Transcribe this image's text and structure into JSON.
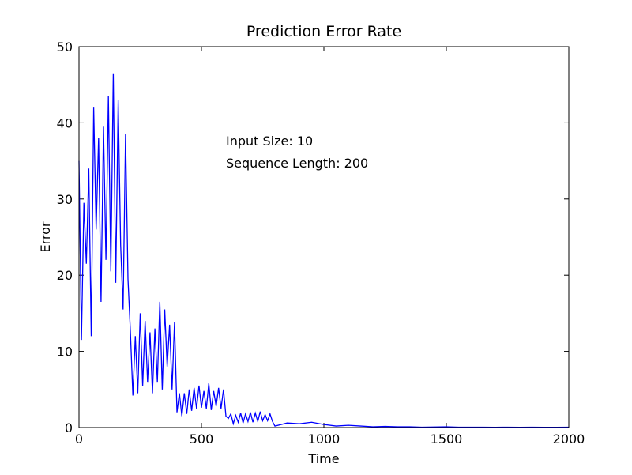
{
  "chart_data": {
    "type": "line",
    "title": "Prediction Error Rate",
    "xlabel": "Time",
    "ylabel": "Error",
    "annotations": [
      "Input Size: 10",
      "Sequence Length: 200"
    ],
    "x": [
      0,
      10,
      20,
      30,
      40,
      50,
      60,
      70,
      80,
      90,
      100,
      110,
      120,
      130,
      140,
      150,
      160,
      170,
      180,
      190,
      200,
      210,
      220,
      230,
      240,
      250,
      260,
      270,
      280,
      290,
      300,
      310,
      320,
      330,
      340,
      350,
      360,
      370,
      380,
      390,
      400,
      410,
      420,
      430,
      440,
      450,
      460,
      470,
      480,
      490,
      500,
      510,
      520,
      530,
      540,
      550,
      560,
      570,
      580,
      590,
      600,
      610,
      620,
      630,
      640,
      650,
      660,
      670,
      680,
      690,
      700,
      710,
      720,
      730,
      740,
      750,
      760,
      770,
      780,
      790,
      800,
      850,
      900,
      950,
      1000,
      1050,
      1100,
      1150,
      1200,
      1250,
      1300,
      1350,
      1400,
      1450,
      1500,
      1550,
      1600,
      1650,
      1700,
      1750,
      1800,
      1850,
      1900,
      1950,
      2000
    ],
    "series": [
      {
        "name": "Error",
        "color": "#0000ff",
        "values": [
          35,
          11.5,
          29.5,
          21.5,
          34,
          12,
          42,
          26,
          38,
          16.5,
          39.5,
          22,
          43.5,
          20.5,
          46.5,
          19,
          43,
          24,
          15.5,
          38.5,
          19.5,
          12.5,
          4.2,
          12,
          4.5,
          15,
          5.5,
          14,
          6,
          12.5,
          4.5,
          13,
          6,
          16.5,
          5,
          15.5,
          8,
          13.5,
          5,
          13.8,
          2,
          4.5,
          1.5,
          4.5,
          1.8,
          5,
          2.2,
          5.2,
          2.5,
          5.5,
          2.6,
          4.8,
          2.5,
          5.8,
          2.3,
          4.8,
          2.8,
          5.2,
          2.5,
          5,
          1.5,
          1.2,
          1.8,
          0.5,
          1.6,
          0.7,
          1.9,
          0.6,
          1.8,
          0.8,
          2,
          0.7,
          1.9,
          0.8,
          2.1,
          0.9,
          1.7,
          0.9,
          1.8,
          0.8,
          0.2,
          0.6,
          0.5,
          0.7,
          0.4,
          0.2,
          0.3,
          0.2,
          0.1,
          0.15,
          0.1,
          0.1,
          0.05,
          0.08,
          0.1,
          0.05,
          0.05,
          0.05,
          0.04,
          0.05,
          0.04,
          0.05,
          0.04,
          0.04,
          0.05
        ]
      }
    ],
    "xlim": [
      0,
      2000
    ],
    "xticks": [
      0,
      500,
      1000,
      1500,
      2000
    ],
    "ylim": [
      0,
      50
    ],
    "yticks": [
      0,
      10,
      20,
      30,
      40,
      50
    ],
    "grid": false
  }
}
